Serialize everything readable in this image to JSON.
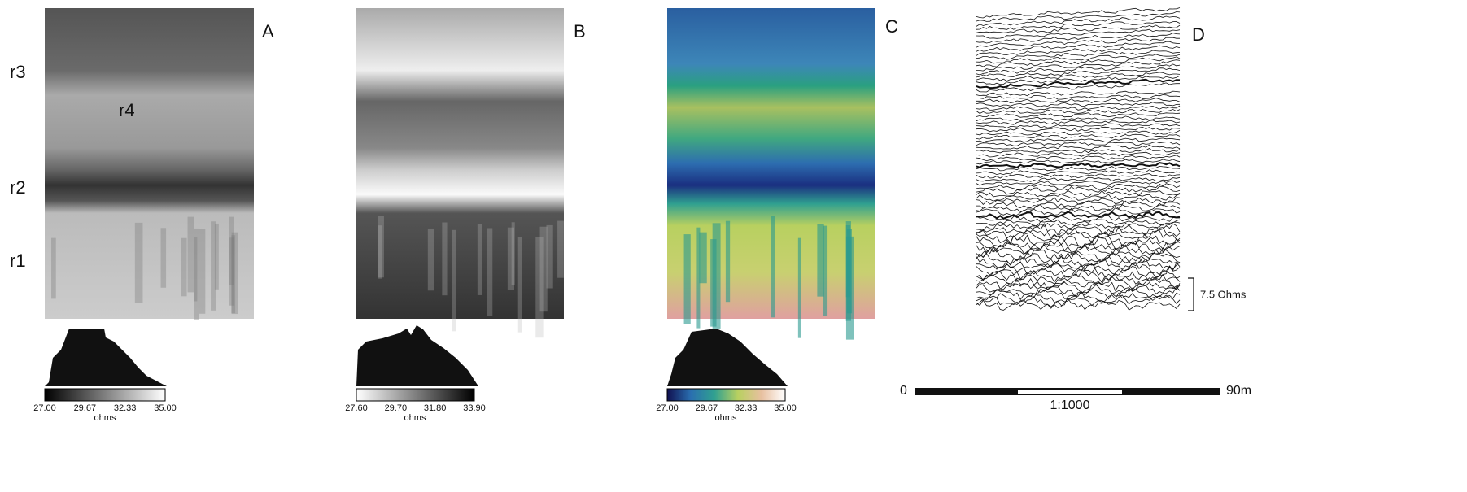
{
  "panels": [
    {
      "letter": "A",
      "row_labels": [
        "r3",
        "r4",
        "r2",
        "r1"
      ],
      "colorbar": {
        "ticks": [
          "27.00",
          "29.67",
          "32.33",
          "35.00"
        ],
        "unit": "ohms"
      }
    },
    {
      "letter": "B",
      "colorbar": {
        "ticks": [
          "27.60",
          "29.70",
          "31.80",
          "33.90"
        ],
        "unit": "ohms"
      }
    },
    {
      "letter": "C",
      "colorbar": {
        "ticks": [
          "27.00",
          "29.67",
          "32.33",
          "35.00"
        ],
        "unit": "ohms"
      }
    },
    {
      "letter": "D",
      "scale_label": "7.5 Ohms"
    }
  ],
  "scale_bar": {
    "start": "0",
    "end": "90m",
    "ratio": "1:1000"
  }
}
